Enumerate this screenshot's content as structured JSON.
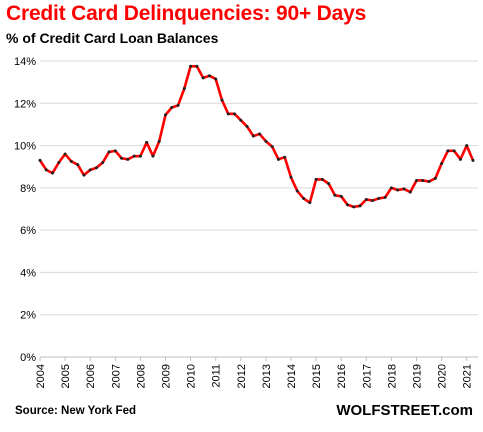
{
  "chart_data": {
    "type": "line",
    "title": "Credit Card Delinquencies: 90+ Days",
    "subtitle": "% of Credit Card Loan Balances",
    "source": "Source: New York Fed",
    "watermark": "WOLFSTREET.com",
    "ylim": [
      0,
      14
    ],
    "yticks": [
      0,
      2,
      4,
      6,
      8,
      10,
      12,
      14
    ],
    "ytick_labels": [
      "0%",
      "2%",
      "4%",
      "6%",
      "8%",
      "10%",
      "12%",
      "14%"
    ],
    "xlim": [
      2004,
      2021.45
    ],
    "xticks": [
      2004,
      2005,
      2006,
      2007,
      2008,
      2009,
      2010,
      2011,
      2012,
      2013,
      2014,
      2015,
      2016,
      2017,
      2018,
      2019,
      2020,
      2021
    ],
    "xtick_labels": [
      "2004",
      "2005",
      "2006",
      "2007",
      "2008",
      "2009",
      "2010",
      "2011",
      "2012",
      "2013",
      "2014",
      "2015",
      "2016",
      "2017",
      "2018",
      "2019",
      "2020",
      "2021"
    ],
    "grid": true,
    "line_color": "#ff0000",
    "marker_color": "#222222",
    "series": [
      {
        "x": [
          2004.0,
          2004.25,
          2004.5,
          2004.75,
          2005.0,
          2005.25,
          2005.5,
          2005.75,
          2006.0,
          2006.25,
          2006.5,
          2006.75,
          2007.0,
          2007.25,
          2007.5,
          2007.75,
          2008.0,
          2008.25,
          2008.5,
          2008.75,
          2009.0,
          2009.25,
          2009.5,
          2009.75,
          2010.0,
          2010.25,
          2010.5,
          2010.75,
          2011.0,
          2011.25,
          2011.5,
          2011.75,
          2012.0,
          2012.25,
          2012.5,
          2012.75,
          2013.0,
          2013.25,
          2013.5,
          2013.75,
          2014.0,
          2014.25,
          2014.5,
          2014.75,
          2015.0,
          2015.25,
          2015.5,
          2015.75,
          2016.0,
          2016.25,
          2016.5,
          2016.75,
          2017.0,
          2017.25,
          2017.5,
          2017.75,
          2018.0,
          2018.25,
          2018.5,
          2018.75,
          2019.0,
          2019.25,
          2019.5,
          2019.75,
          2020.0,
          2020.25,
          2020.5,
          2020.75,
          2021.0,
          2021.25
        ],
        "values": [
          9.3,
          8.85,
          8.7,
          9.2,
          9.6,
          9.25,
          9.1,
          8.6,
          8.85,
          8.95,
          9.2,
          9.7,
          9.75,
          9.4,
          9.35,
          9.5,
          9.5,
          10.15,
          9.5,
          10.2,
          11.45,
          11.8,
          11.9,
          12.7,
          13.75,
          13.75,
          13.2,
          13.3,
          13.15,
          12.15,
          11.5,
          11.5,
          11.2,
          10.9,
          10.45,
          10.55,
          10.2,
          9.95,
          9.35,
          9.45,
          8.5,
          7.85,
          7.5,
          7.3,
          8.4,
          8.4,
          8.2,
          7.65,
          7.6,
          7.2,
          7.1,
          7.15,
          7.45,
          7.4,
          7.5,
          7.55,
          8.0,
          7.9,
          7.95,
          7.8,
          8.35,
          8.35,
          8.3,
          8.45,
          9.15,
          9.75,
          9.75,
          9.35,
          10.0,
          9.3
        ]
      }
    ]
  }
}
